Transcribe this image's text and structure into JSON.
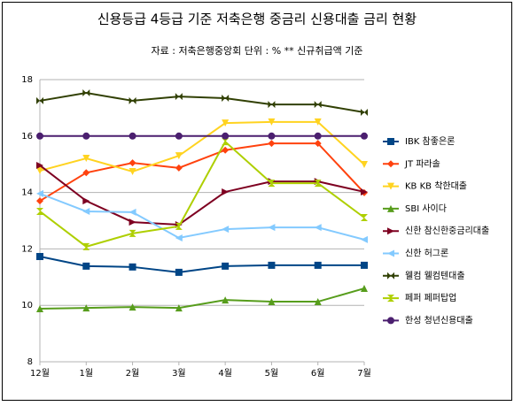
{
  "chart_data": {
    "type": "line",
    "title": "신용등급 4등급 기준 저축은행 중금리 신용대출 금리 현황",
    "subtitle": "자료 : 저축은행중앙회 단위 : % ** 신규취급액 기준",
    "categories": [
      "12월",
      "1월",
      "2월",
      "3월",
      "4월",
      "5월",
      "6월",
      "7월"
    ],
    "ylim": [
      8,
      18
    ],
    "yticks": [
      8,
      10,
      12,
      14,
      16,
      18
    ],
    "grid": true,
    "legend": "right",
    "series": [
      {
        "name": "IBK 참좋은론",
        "color": "#004586",
        "marker": "square",
        "values": [
          11.73,
          11.39,
          11.36,
          11.17,
          11.39,
          11.42,
          11.42,
          11.42
        ]
      },
      {
        "name": "JT 파라솔",
        "color": "#ff420e",
        "marker": "diamond",
        "values": [
          13.7,
          14.7,
          15.05,
          14.87,
          15.5,
          15.74,
          15.74,
          13.99
        ]
      },
      {
        "name": "KB KB 착한대출",
        "color": "#ffd320",
        "marker": "triangle-down",
        "values": [
          14.77,
          15.21,
          14.74,
          15.3,
          16.46,
          16.5,
          16.5,
          14.99
        ]
      },
      {
        "name": "SBI 사이다",
        "color": "#579d1c",
        "marker": "triangle-up",
        "values": [
          9.88,
          9.91,
          9.94,
          9.91,
          10.19,
          10.13,
          10.13,
          10.6
        ]
      },
      {
        "name": "신한 참신한중금리대출",
        "color": "#7e0021",
        "marker": "triangle-right",
        "values": [
          14.96,
          13.7,
          12.95,
          12.86,
          14.02,
          14.39,
          14.39,
          14.02
        ]
      },
      {
        "name": "신한 허그론",
        "color": "#83caff",
        "marker": "triangle-left",
        "values": [
          13.96,
          13.33,
          13.3,
          12.39,
          12.7,
          12.76,
          12.76,
          12.33
        ]
      },
      {
        "name": "웰컴 웰컴텐대출",
        "color": "#314004",
        "marker": "bowtie",
        "values": [
          17.25,
          17.53,
          17.25,
          17.4,
          17.34,
          17.12,
          17.12,
          16.84
        ]
      },
      {
        "name": "페퍼 페퍼탑업",
        "color": "#aecf00",
        "marker": "hourglass",
        "values": [
          13.33,
          12.08,
          12.55,
          12.8,
          15.8,
          14.33,
          14.33,
          13.11
        ]
      },
      {
        "name": "한성 청년신용대출",
        "color": "#4b1f6f",
        "marker": "circle",
        "values": [
          16,
          16,
          16,
          16,
          16,
          16,
          16,
          16
        ]
      }
    ]
  }
}
